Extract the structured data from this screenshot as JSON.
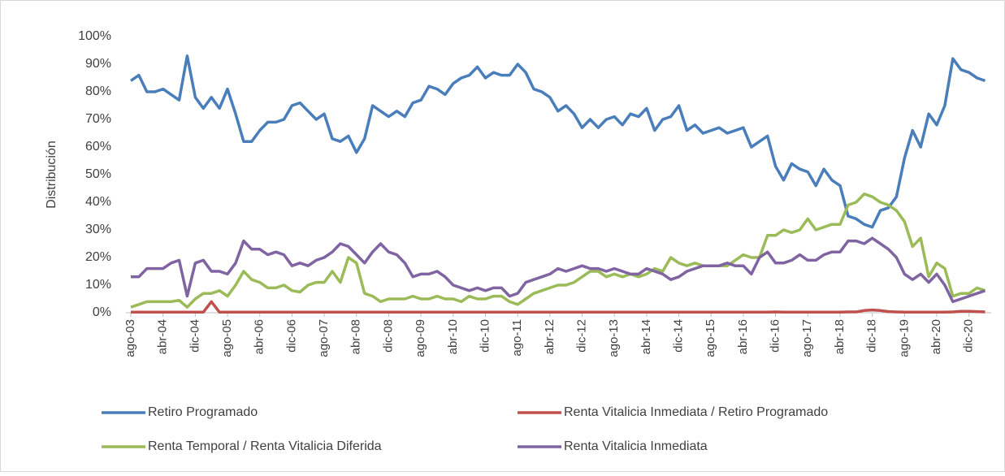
{
  "chart_data": {
    "type": "line",
    "y_label": "Distribución",
    "categories": [
      "ago-03",
      null,
      null,
      null,
      "abr-04",
      null,
      null,
      null,
      "dic-04",
      null,
      null,
      null,
      "ago-05",
      null,
      null,
      null,
      "abr-06",
      null,
      null,
      null,
      "dic-06",
      null,
      null,
      null,
      "ago-07",
      null,
      null,
      null,
      "abr-08",
      null,
      null,
      null,
      "dic-08",
      null,
      null,
      null,
      "ago-09",
      null,
      null,
      null,
      "abr-10",
      null,
      null,
      null,
      "dic-10",
      null,
      null,
      null,
      "ago-11",
      null,
      null,
      null,
      "abr-12",
      null,
      null,
      null,
      "dic-12",
      null,
      null,
      null,
      "ago-13",
      null,
      null,
      null,
      "abr-14",
      null,
      null,
      null,
      "dic-14",
      null,
      null,
      null,
      "ago-15",
      null,
      null,
      null,
      "abr-16",
      null,
      null,
      null,
      "dic-16",
      null,
      null,
      null,
      "ago-17",
      null,
      null,
      null,
      "abr-18",
      null,
      null,
      null,
      "dic-18",
      null,
      null,
      null,
      "ago-19",
      null,
      null,
      null,
      "abr-20",
      null,
      null,
      null,
      "dic-20",
      null,
      null
    ],
    "series": [
      {
        "name": "Retiro Programado",
        "color": "#4a7ebb",
        "values": [
          84,
          86,
          80,
          80,
          81,
          79,
          77,
          93,
          78,
          74,
          78,
          74,
          81,
          72,
          62,
          62,
          66,
          69,
          69,
          70,
          75,
          76,
          73,
          70,
          72,
          63,
          62,
          64,
          58,
          63,
          75,
          73,
          71,
          73,
          71,
          76,
          77,
          82,
          81,
          79,
          83,
          85,
          86,
          89,
          85,
          87,
          86,
          86,
          90,
          87,
          81,
          80,
          78,
          73,
          75,
          72,
          67,
          70,
          67,
          70,
          71,
          68,
          72,
          71,
          74,
          66,
          70,
          71,
          75,
          66,
          68,
          65,
          66,
          67,
          65,
          66,
          67,
          60,
          62,
          64,
          53,
          48,
          54,
          52,
          51,
          46,
          52,
          48,
          46,
          35,
          34,
          32,
          31,
          37,
          38,
          42,
          56,
          66,
          60,
          72,
          68,
          75,
          92,
          88,
          87,
          85,
          84
        ]
      },
      {
        "name": "Renta Vitalicia Inmediata / Retiro Programado",
        "color": "#c0504d",
        "values": [
          0.2,
          0.2,
          0.2,
          0.2,
          0.2,
          0.2,
          0.2,
          0.2,
          0.2,
          0.2,
          4,
          0.2,
          0.2,
          0.2,
          0.2,
          0.2,
          0.2,
          0.2,
          0.2,
          0.2,
          0.2,
          0.2,
          0.2,
          0.2,
          0.2,
          0.2,
          0.2,
          0.2,
          0.2,
          0.2,
          0.2,
          0.2,
          0.2,
          0.2,
          0.2,
          0.2,
          0.2,
          0.2,
          0.2,
          0.2,
          0.2,
          0.2,
          0.2,
          0.2,
          0.2,
          0.2,
          0.2,
          0.2,
          0.2,
          0.2,
          0.2,
          0.2,
          0.2,
          0.2,
          0.2,
          0.2,
          0.2,
          0.2,
          0.2,
          0.2,
          0.2,
          0.2,
          0.2,
          0.2,
          0.2,
          0.2,
          0.2,
          0.2,
          0.2,
          0.2,
          0.2,
          0.2,
          0.2,
          0.2,
          0.2,
          0.2,
          0.2,
          0.2,
          0.2,
          0.2,
          0.3,
          0.2,
          0.2,
          0.2,
          0.2,
          0.2,
          0.2,
          0.2,
          0.2,
          0.3,
          0.3,
          0.8,
          1,
          0.8,
          0.4,
          0.3,
          0.2,
          0.2,
          0.2,
          0.2,
          0.2,
          0.2,
          0.3,
          0.5,
          0.5,
          0.4,
          0.3
        ]
      },
      {
        "name": "Renta Temporal / Renta Vitalicia Diferida",
        "color": "#9bbb59",
        "values": [
          2,
          3,
          4,
          4,
          4,
          4,
          4.5,
          2,
          5,
          7,
          7,
          8,
          6,
          10,
          15,
          12,
          11,
          9,
          9,
          10,
          8,
          7.5,
          10,
          11,
          11,
          15,
          11,
          20,
          18,
          7,
          6,
          4,
          5,
          5,
          5,
          6,
          5,
          5,
          6,
          5,
          5,
          4,
          6,
          5,
          5,
          6,
          6,
          4,
          3,
          5,
          7,
          8,
          9,
          10,
          10,
          11,
          13,
          15,
          15,
          13,
          14,
          13,
          14,
          13,
          14,
          16,
          15,
          20,
          18,
          17,
          18,
          17,
          17,
          17,
          17,
          19,
          21,
          20,
          20,
          28,
          28,
          30,
          29,
          30,
          34,
          30,
          31,
          32,
          32,
          39,
          40,
          43,
          42,
          40,
          39,
          37,
          33,
          24,
          27,
          13,
          18,
          16,
          6,
          7,
          7,
          9,
          8
        ]
      },
      {
        "name": "Renta Vitalicia Inmediata",
        "color": "#8064a2",
        "values": [
          13,
          13,
          16,
          16,
          16,
          18,
          19,
          6,
          18,
          19,
          15,
          15,
          14,
          18,
          26,
          23,
          23,
          21,
          22,
          21,
          17,
          18,
          17,
          19,
          20,
          22,
          25,
          24,
          21,
          18,
          22,
          25,
          22,
          21,
          18,
          13,
          14,
          14,
          15,
          13,
          10,
          9,
          8,
          9,
          8,
          9,
          9,
          6,
          7,
          11,
          12,
          13,
          14,
          16,
          15,
          16,
          17,
          16,
          16,
          15,
          16,
          15,
          14,
          14,
          16,
          15,
          14,
          12,
          13,
          15,
          16,
          17,
          17,
          17,
          18,
          17,
          17,
          14,
          20,
          22,
          18,
          18,
          19,
          21,
          19,
          19,
          21,
          22,
          22,
          26,
          26,
          25,
          27,
          25,
          23,
          20,
          14,
          12,
          14,
          11,
          14,
          10,
          4,
          5,
          6,
          7,
          8
        ]
      }
    ],
    "ylim": [
      0,
      100
    ],
    "yticks": [
      {
        "value": 0,
        "label": "0%"
      },
      {
        "value": 10,
        "label": "10%"
      },
      {
        "value": 20,
        "label": "20%"
      },
      {
        "value": 30,
        "label": "30%"
      },
      {
        "value": 40,
        "label": "40%"
      },
      {
        "value": 50,
        "label": "50%"
      },
      {
        "value": 60,
        "label": "60%"
      },
      {
        "value": 70,
        "label": "70%"
      },
      {
        "value": 80,
        "label": "80%"
      },
      {
        "value": 90,
        "label": "90%"
      },
      {
        "value": 100,
        "label": "100%"
      }
    ],
    "grid": false,
    "legend": "bottom"
  }
}
